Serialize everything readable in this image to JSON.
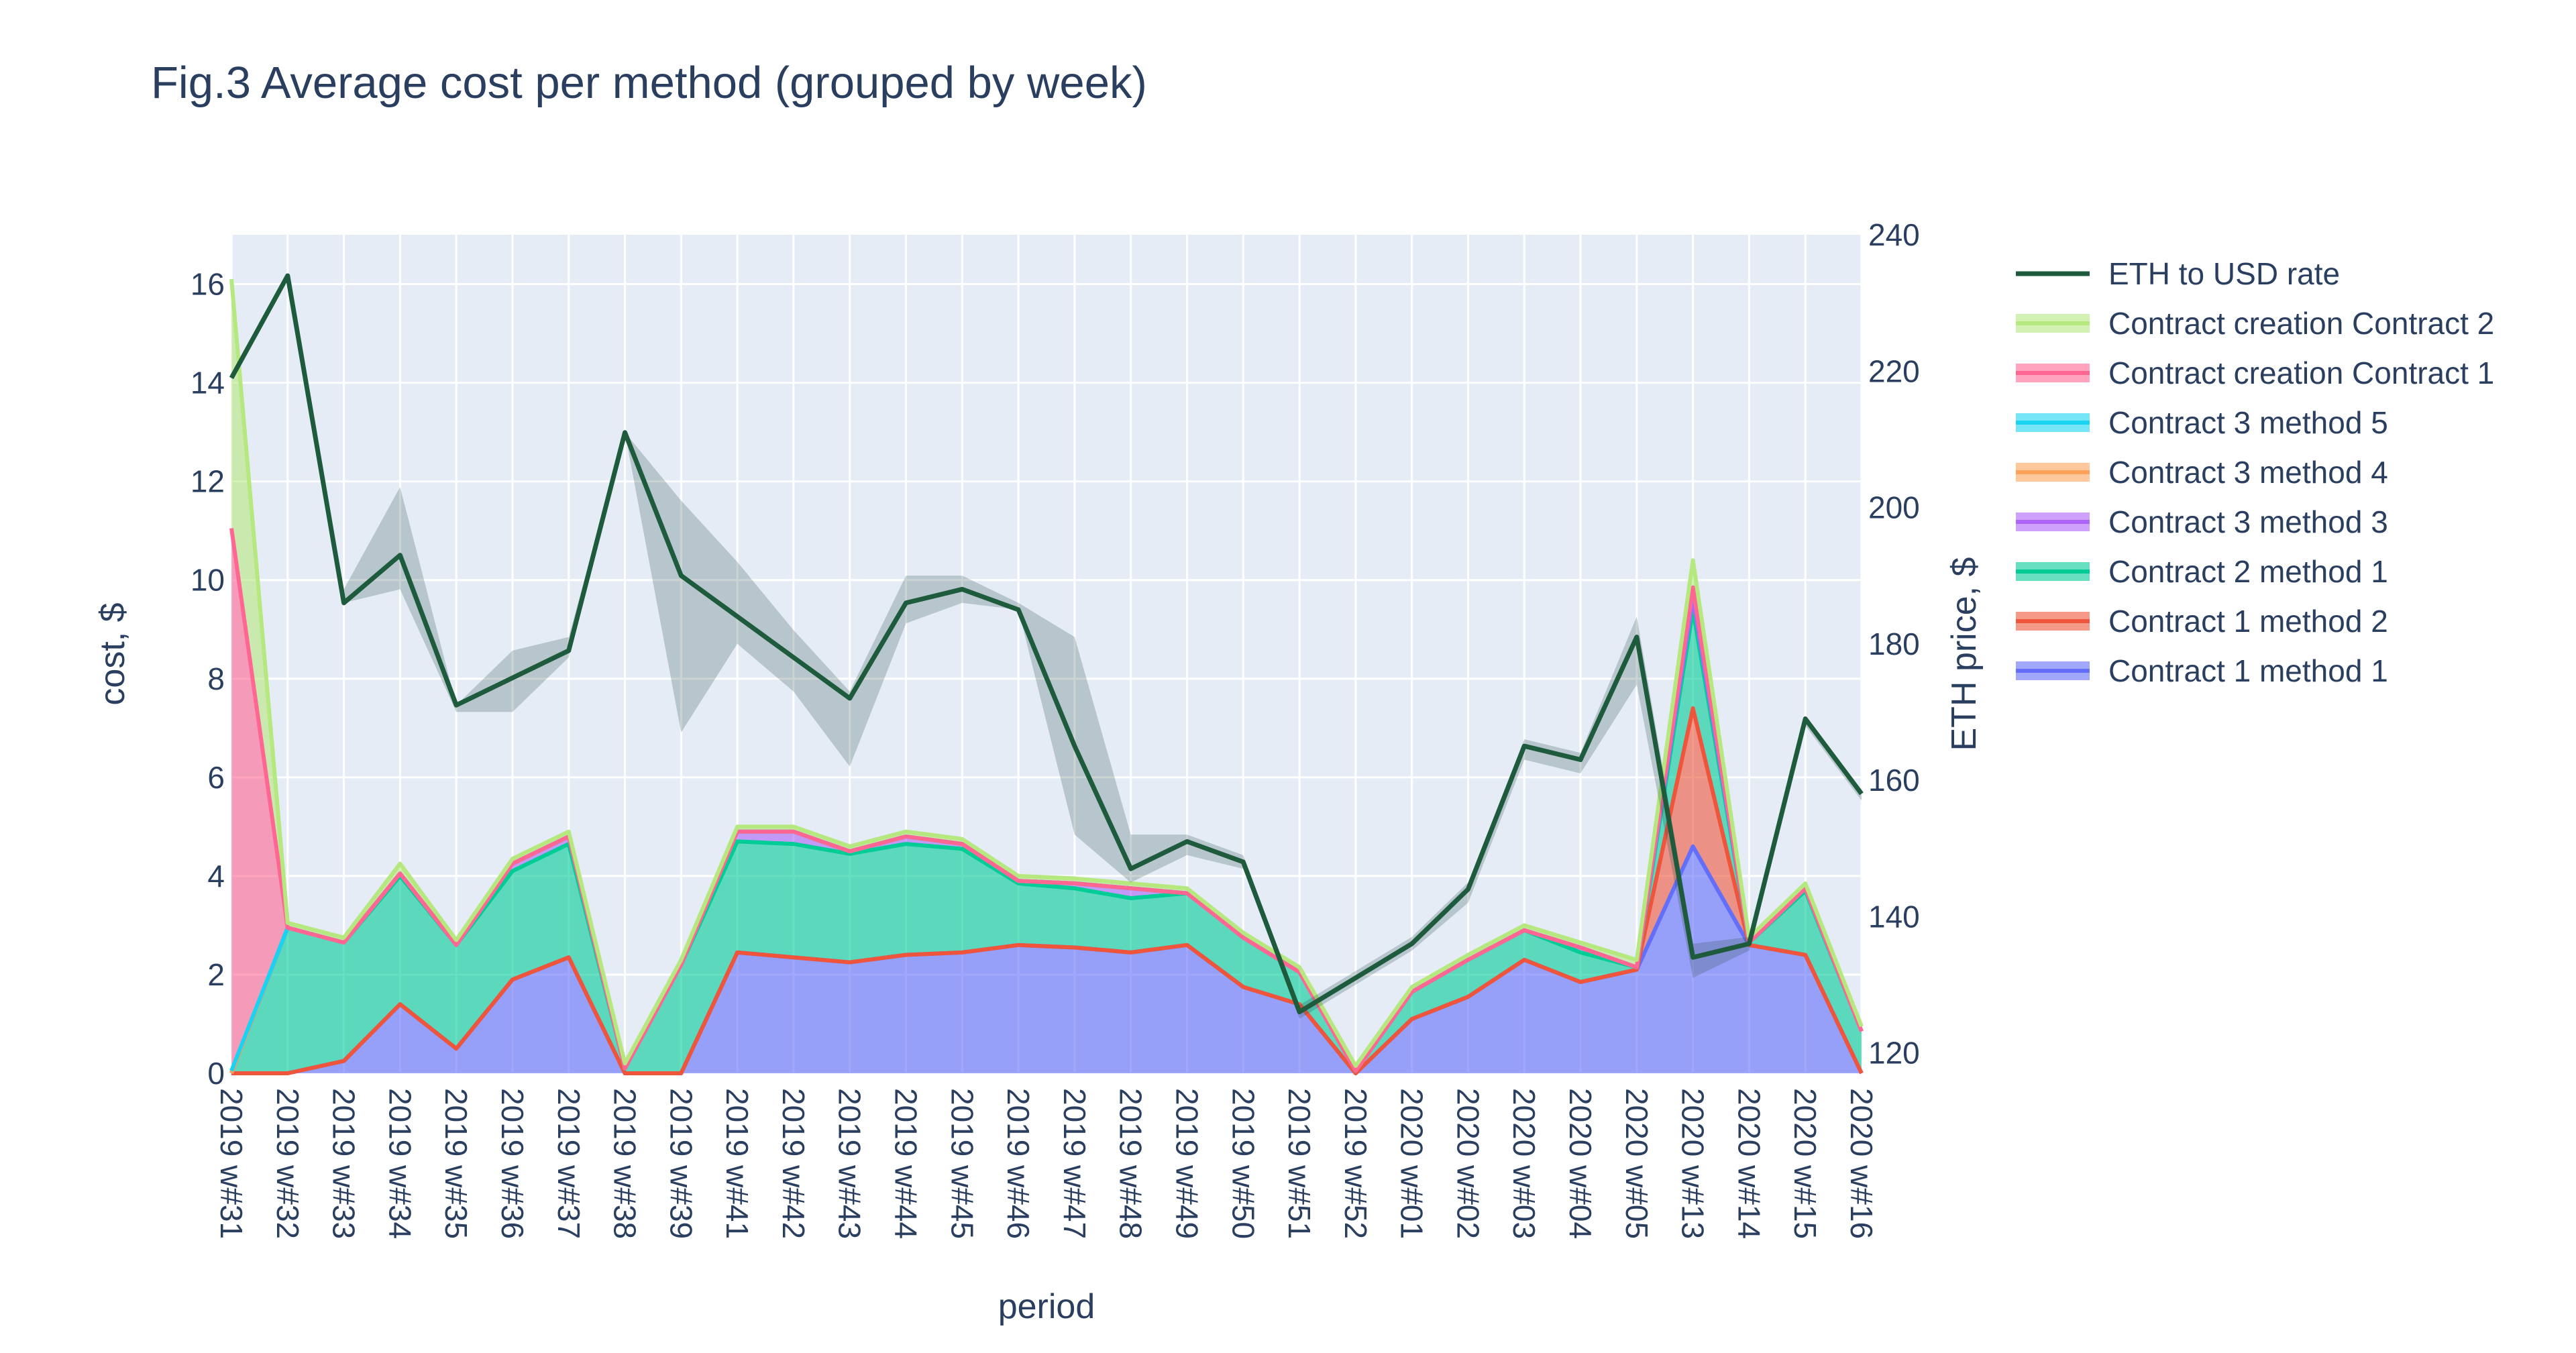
{
  "title": "Fig.3 Average cost per method (grouped by week)",
  "chart_data": {
    "type": "area",
    "title": "Fig.3 Average cost per method (grouped by week)",
    "xlabel": "period",
    "ylabel": "cost, $",
    "y2label": "ETH price, $",
    "ylim": [
      0,
      17
    ],
    "y2lim": [
      117,
      240
    ],
    "yticks": [
      0,
      2,
      4,
      6,
      8,
      10,
      12,
      14,
      16
    ],
    "y2ticks": [
      120,
      140,
      160,
      180,
      200,
      220,
      240
    ],
    "grid": true,
    "legend_position": "right",
    "categories": [
      "2019 w#31",
      "2019 w#32",
      "2019 w#33",
      "2019 w#34",
      "2019 w#35",
      "2019 w#36",
      "2019 w#37",
      "2019 w#38",
      "2019 w#39",
      "2019 w#41",
      "2019 w#42",
      "2019 w#43",
      "2019 w#44",
      "2019 w#45",
      "2019 w#46",
      "2019 w#47",
      "2019 w#48",
      "2019 w#49",
      "2019 w#50",
      "2019 w#51",
      "2019 w#52",
      "2020 w#01",
      "2020 w#02",
      "2020 w#03",
      "2020 w#04",
      "2020 w#05",
      "2020 w#13",
      "2020 w#14",
      "2020 w#15",
      "2020 w#16"
    ],
    "stacked_series": [
      {
        "name": "Contract 1 method 1",
        "color": "#636efa",
        "values": [
          0,
          0,
          0.25,
          1.4,
          0.5,
          1.9,
          2.35,
          0,
          0,
          2.45,
          2.35,
          2.25,
          2.4,
          2.45,
          2.6,
          2.55,
          2.45,
          2.6,
          1.75,
          1.4,
          0,
          1.1,
          1.55,
          2.3,
          1.85,
          2.1,
          4.6,
          2.6,
          2.4,
          0
        ]
      },
      {
        "name": "Contract 1 method 2",
        "color": "#ef553b",
        "values": [
          0,
          0,
          0,
          0,
          0,
          0,
          0,
          0,
          0,
          0,
          0,
          0,
          0,
          0,
          0,
          0,
          0,
          0,
          0,
          0,
          0,
          0,
          0,
          0,
          0,
          0,
          2.8,
          0,
          0,
          0
        ]
      },
      {
        "name": "Contract 2 method 1",
        "color": "#00cc96",
        "values": [
          0,
          2.95,
          2.4,
          2.6,
          2.1,
          2.2,
          2.3,
          0.1,
          2.2,
          2.25,
          2.3,
          2.2,
          2.25,
          2.1,
          1.25,
          1.2,
          1.1,
          1.05,
          1.0,
          0.65,
          0.05,
          0.55,
          0.75,
          0.6,
          0.6,
          0.05,
          2.0,
          0.05,
          1.3,
          0.85
        ]
      },
      {
        "name": "Contract 3 method 3",
        "color": "#ab63fa",
        "values": [
          0,
          0,
          0,
          0.05,
          0,
          0.15,
          0.15,
          0,
          0,
          0.2,
          0.25,
          0.05,
          0.15,
          0.1,
          0.05,
          0.1,
          0.2,
          0,
          0,
          0,
          0,
          0,
          0,
          0,
          0.1,
          0,
          0.25,
          0,
          0.05,
          0
        ]
      },
      {
        "name": "Contract 3 method 4",
        "color": "#ffa15a",
        "values": [
          0,
          0,
          0,
          0,
          0,
          0,
          0,
          0,
          0,
          0,
          0,
          0,
          0,
          0,
          0,
          0,
          0,
          0,
          0,
          0,
          0,
          0,
          0,
          0,
          0,
          0,
          0.2,
          0,
          0,
          0
        ]
      },
      {
        "name": "Contract 3 method 5",
        "color": "#19d3f3",
        "values": [
          0.05,
          0,
          0,
          0,
          0,
          0,
          0,
          0,
          0,
          0,
          0,
          0,
          0,
          0,
          0,
          0,
          0,
          0,
          0,
          0,
          0,
          0,
          0,
          0,
          0,
          0,
          0,
          0,
          0,
          0
        ]
      },
      {
        "name": "Contract creation Contract 1",
        "color": "#ff6692",
        "values": [
          11,
          0,
          0,
          0,
          0,
          0,
          0,
          0,
          0,
          0,
          0,
          0,
          0,
          0,
          0,
          0,
          0,
          0,
          0,
          0,
          0,
          0,
          0,
          0,
          0,
          0,
          0,
          0,
          0,
          0
        ]
      },
      {
        "name": "Contract creation Contract 2",
        "color": "#b6e880",
        "values": [
          5.05,
          0.1,
          0.1,
          0.2,
          0.1,
          0.1,
          0.1,
          0.1,
          0.1,
          0.1,
          0.1,
          0.1,
          0.1,
          0.1,
          0.1,
          0.1,
          0.1,
          0.1,
          0.1,
          0.1,
          0.1,
          0.1,
          0.1,
          0.1,
          0.1,
          0.15,
          0.55,
          0.1,
          0.1,
          0.1
        ]
      }
    ],
    "line_series": {
      "name": "ETH to USD rate",
      "color": "#1e5a3c",
      "axis": "right",
      "values": [
        219,
        234,
        186,
        193,
        171,
        175,
        179,
        211,
        190,
        184,
        178,
        172,
        186,
        188,
        185,
        165,
        147,
        151,
        148,
        126,
        131,
        136,
        144,
        165,
        163,
        181,
        134,
        136,
        169,
        158
      ],
      "band_low": [
        219,
        234,
        186,
        188,
        170,
        170,
        178,
        211,
        167,
        180,
        173,
        162,
        183,
        186,
        185,
        152,
        145,
        149,
        147,
        125,
        130,
        135,
        142,
        163,
        161,
        174,
        131,
        135,
        168,
        157
      ],
      "band_high": [
        219,
        234,
        188,
        203,
        171,
        179,
        181,
        211,
        201,
        192,
        182,
        173,
        190,
        190,
        186,
        181,
        152,
        152,
        149,
        127,
        132,
        137,
        145,
        166,
        164,
        184,
        136,
        137,
        169,
        158
      ]
    }
  },
  "legend": [
    {
      "name": "ETH to USD rate",
      "color": "#1e5a3c",
      "kind": "line"
    },
    {
      "name": "Contract creation Contract 2",
      "color": "#b6e880",
      "kind": "area"
    },
    {
      "name": "Contract creation Contract 1",
      "color": "#ff6692",
      "kind": "area"
    },
    {
      "name": "Contract 3 method 5",
      "color": "#19d3f3",
      "kind": "area"
    },
    {
      "name": "Contract 3 method 4",
      "color": "#ffa15a",
      "kind": "area"
    },
    {
      "name": "Contract 3 method 3",
      "color": "#ab63fa",
      "kind": "area"
    },
    {
      "name": "Contract 2 method 1",
      "color": "#00cc96",
      "kind": "area"
    },
    {
      "name": "Contract 1 method 2",
      "color": "#ef553b",
      "kind": "area"
    },
    {
      "name": "Contract 1 method 1",
      "color": "#636efa",
      "kind": "area"
    }
  ]
}
